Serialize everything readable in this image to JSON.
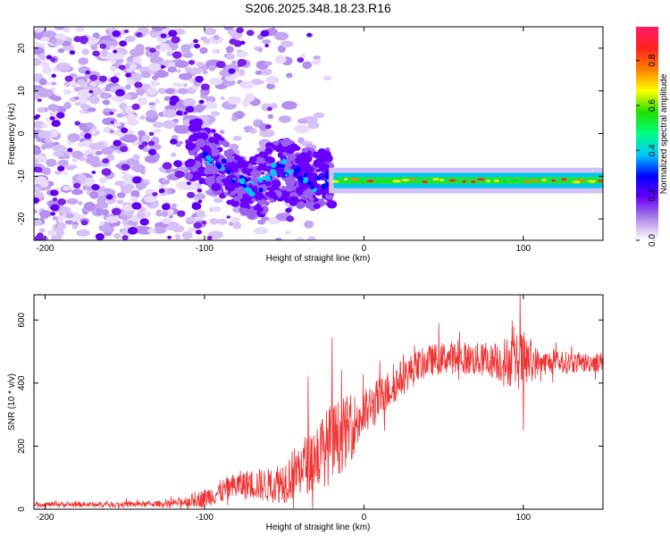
{
  "title": "S206.2025.348.18.23.R16",
  "chart_data": [
    {
      "type": "heatmap",
      "xlabel": "Height of straight line (km)",
      "ylabel": "Frequency (Hz)",
      "xlim": [
        -207,
        150
      ],
      "ylim": [
        -25,
        25
      ],
      "xticks": [
        -200,
        -100,
        0,
        100
      ],
      "yticks": [
        -20,
        -10,
        0,
        10,
        20
      ],
      "ridge": {
        "x": [
          -105,
          -100,
          -95,
          -90,
          -85,
          -80,
          -75,
          -70,
          -65,
          -60,
          -55,
          -50,
          -45,
          -40,
          -35,
          -30,
          -25,
          -20,
          -15,
          -10,
          0,
          25,
          50,
          75,
          100,
          125,
          150
        ],
        "frequency": [
          -4,
          -5,
          -6,
          -7,
          -9,
          -11,
          -12,
          -13,
          -12,
          -10,
          -8,
          -8,
          -9,
          -10,
          -11,
          -12,
          -11,
          -10,
          -10.5,
          -11,
          -11,
          -11,
          -11,
          -11,
          -11,
          -11,
          -11
        ]
      },
      "scatter_extent_x": [
        -207,
        -20
      ],
      "colorbar": {
        "label": "Normalized spectral amplitude",
        "range": [
          0.0,
          0.95
        ],
        "ticks": [
          "0.0",
          "0.2",
          "0.4",
          "0.6",
          "0.8"
        ],
        "tick_values": [
          0.0,
          0.2,
          0.4,
          0.6,
          0.8
        ]
      }
    },
    {
      "type": "line",
      "xlabel": "Height of straight line (km)",
      "ylabel": "SNR (10 * v/v)",
      "xlim": [
        -207,
        150
      ],
      "ylim": [
        0,
        680
      ],
      "xticks": [
        -200,
        -100,
        0,
        100
      ],
      "yticks": [
        0,
        200,
        400,
        600
      ],
      "color": "#ee3333",
      "trend": {
        "x": [
          -207,
          -150,
          -120,
          -100,
          -90,
          -80,
          -70,
          -60,
          -50,
          -40,
          -30,
          -20,
          -10,
          0,
          10,
          20,
          30,
          40,
          50,
          60,
          70,
          80,
          90,
          100,
          110,
          120,
          130,
          140,
          150
        ],
        "snr": [
          15,
          15,
          18,
          35,
          55,
          75,
          80,
          75,
          90,
          130,
          170,
          210,
          250,
          300,
          350,
          400,
          440,
          470,
          480,
          480,
          475,
          470,
          470,
          470,
          465,
          465,
          465,
          465,
          470
        ]
      },
      "noise": {
        "x": [
          -207,
          -120,
          -100,
          -80,
          -60,
          -40,
          -20,
          -10,
          0,
          20,
          40,
          80,
          90,
          100,
          110,
          150
        ],
        "amplitude": [
          8,
          10,
          30,
          45,
          55,
          90,
          130,
          110,
          80,
          60,
          50,
          55,
          80,
          95,
          40,
          30
        ]
      },
      "spikes": [
        {
          "x": -35,
          "snr": 420
        },
        {
          "x": -20,
          "snr": 545
        },
        {
          "x": 98,
          "snr": 680
        },
        {
          "x": 100,
          "snr": 250
        }
      ]
    }
  ]
}
